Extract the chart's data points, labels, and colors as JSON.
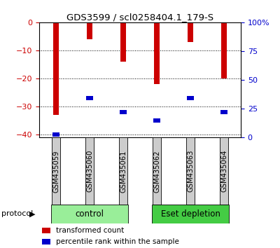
{
  "title": "GDS3599 / scl0258404.1_179-S",
  "categories": [
    "GSM435059",
    "GSM435060",
    "GSM435061",
    "GSM435062",
    "GSM435063",
    "GSM435064"
  ],
  "bar_values": [
    -33,
    -6,
    -14,
    -22,
    -7,
    -20
  ],
  "blue_marker_values": [
    -40,
    -27,
    -32,
    -35,
    -27,
    -32
  ],
  "ylim_left": [
    -41,
    0
  ],
  "ylim_right": [
    0,
    100
  ],
  "yticks_left": [
    0,
    -10,
    -20,
    -30,
    -40
  ],
  "yticks_right": [
    0,
    25,
    50,
    75,
    100
  ],
  "bar_color": "#cc0000",
  "blue_color": "#0000cc",
  "bar_width": 0.18,
  "groups": [
    {
      "label": "control",
      "indices": [
        0,
        1,
        2
      ],
      "color": "#99ee99"
    },
    {
      "label": "Eset depletion",
      "indices": [
        3,
        4,
        5
      ],
      "color": "#44cc44"
    }
  ],
  "protocol_label": "protocol",
  "legend_items": [
    {
      "color": "#cc0000",
      "label": "transformed count"
    },
    {
      "color": "#0000cc",
      "label": "percentile rank within the sample"
    }
  ],
  "background_color": "#ffffff",
  "tick_label_color_left": "#cc0000",
  "tick_label_color_right": "#0000cc",
  "xlabel_area_color": "#cccccc",
  "title_fontsize": 9.5
}
